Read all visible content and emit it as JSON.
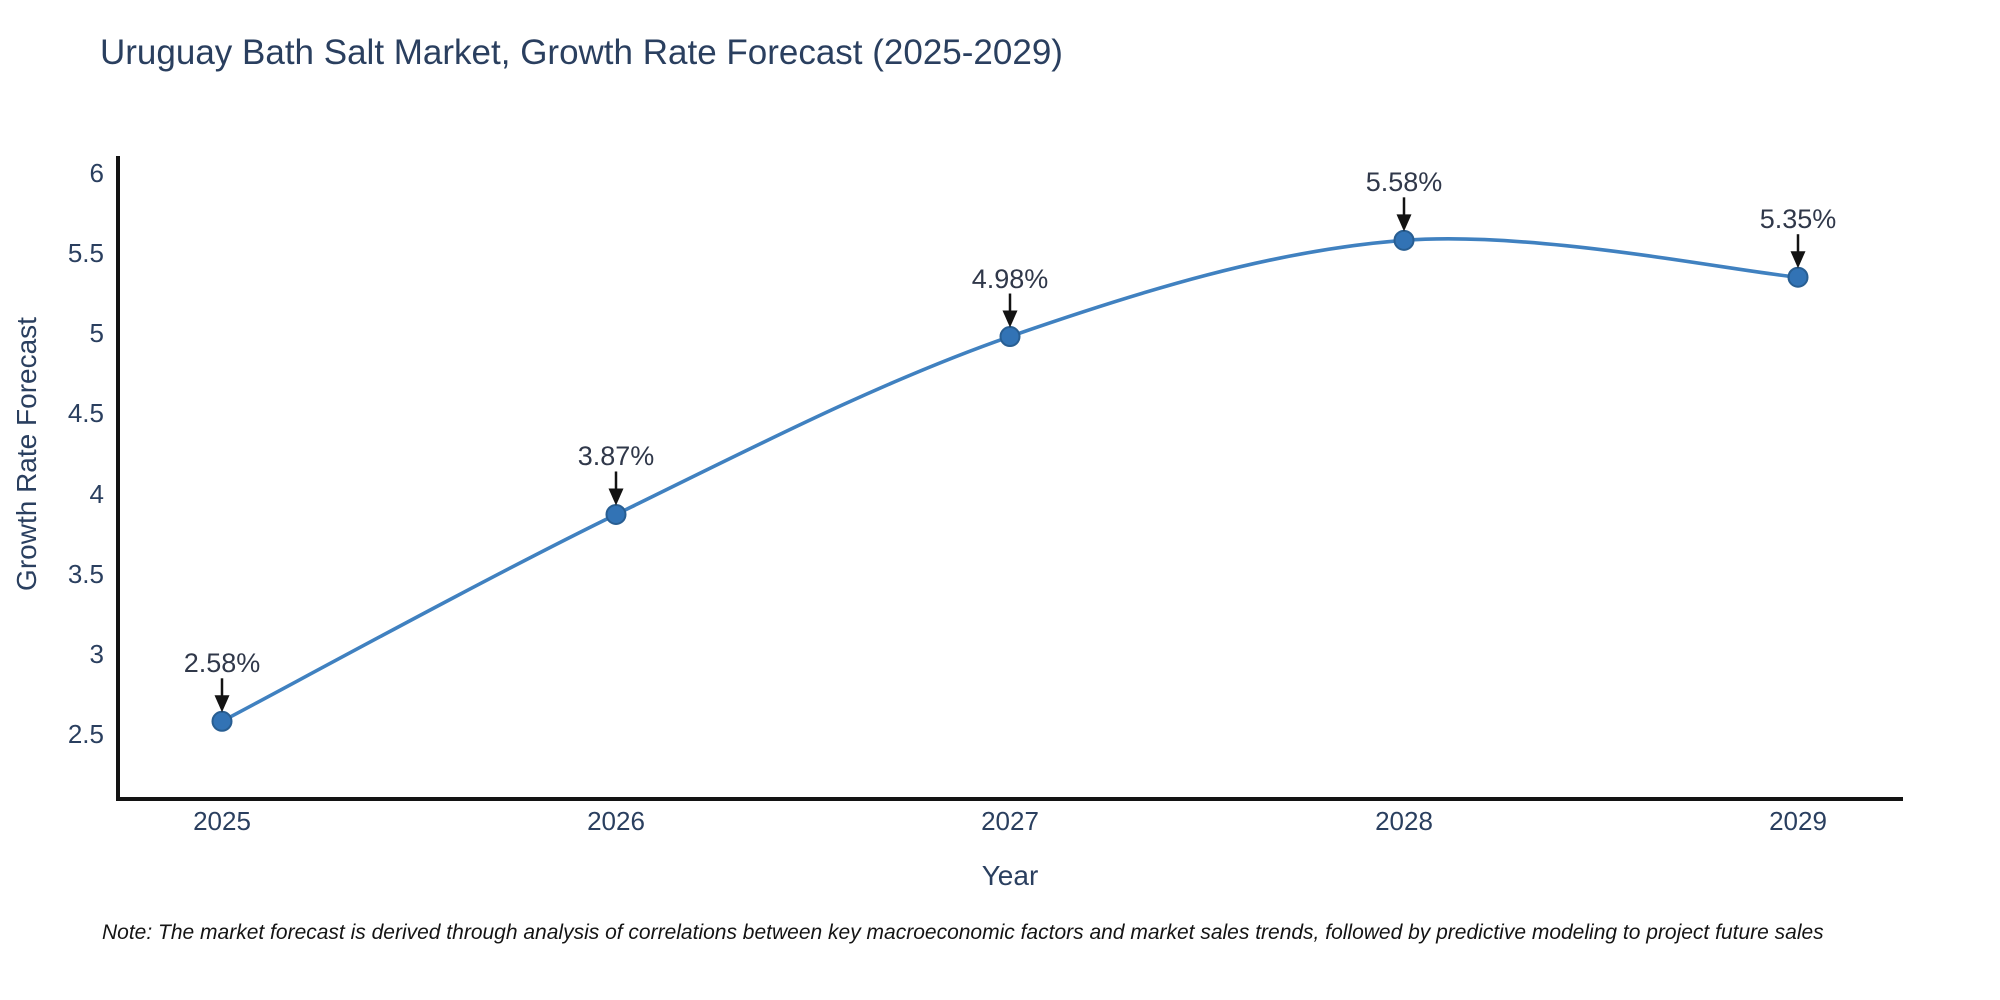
{
  "title": "Uruguay Bath Salt Market, Growth Rate Forecast (2025-2029)",
  "note": "Note: The market forecast is derived through analysis of correlations between key macroeconomic factors and market sales trends, followed by predictive modeling to project future sales",
  "colors": {
    "title_text": "#2a3f5f",
    "axis_text": "#2a3f5f",
    "annotation_text": "#30384a",
    "spine": "#131313",
    "line": "#4081c0",
    "marker_fill": "#3273b5",
    "marker_edge": "#285e92",
    "arrow": "#131313",
    "background": "#ffffff"
  },
  "chart_data": {
    "type": "line",
    "curve": "spline",
    "x": [
      2025,
      2026,
      2027,
      2028,
      2029
    ],
    "categories": [
      "2025",
      "2026",
      "2027",
      "2028",
      "2029"
    ],
    "series": [
      {
        "name": "Growth Rate Forecast",
        "values": [
          2.58,
          3.87,
          4.98,
          5.58,
          5.35
        ]
      }
    ],
    "point_labels": [
      "2.58%",
      "3.87%",
      "4.98%",
      "5.58%",
      "5.35%"
    ],
    "title": "Uruguay Bath Salt Market, Growth Rate Forecast (2025-2029)",
    "xlabel": "Year",
    "ylabel": "Growth Rate Forecast",
    "yticks": [
      6,
      5.5,
      5,
      4.5,
      4,
      3.5,
      3,
      2.5
    ],
    "ytick_labels": [
      "6",
      "5.5",
      "5",
      "4.5",
      "4",
      "3.5",
      "3",
      "2.5"
    ],
    "ylim": [
      2.08,
      6.11
    ],
    "xlim": [
      2024.73,
      2029.27
    ],
    "grid": false,
    "legend": false,
    "annotations_have_arrows": true
  }
}
